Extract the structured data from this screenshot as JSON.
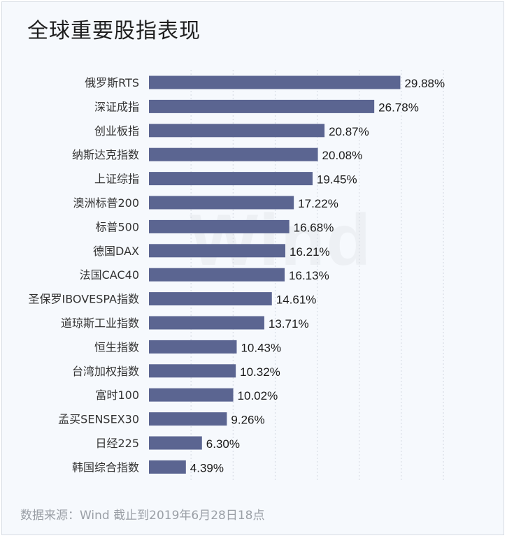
{
  "title": "全球重要股指表现",
  "source": "数据来源：Wind  截止到2019年6月28日18点",
  "watermark": "Wind",
  "colors": {
    "bar": "#5b6591",
    "grid": "#d3d8e0",
    "background": "#f6f9fd"
  },
  "chart_data": {
    "type": "bar",
    "orientation": "horizontal",
    "categories": [
      "俄罗斯RTS",
      "深证成指",
      "创业板指",
      "纳斯达克指数",
      "上证综指",
      "澳洲标普200",
      "标普500",
      "德国DAX",
      "法国CAC40",
      "圣保罗IBOVESPA指数",
      "道琼斯工业指数",
      "恒生指数",
      "台湾加权指数",
      "富时100",
      "孟买SENSEX30",
      "日经225",
      "韩国综合指数"
    ],
    "values": [
      29.88,
      26.78,
      20.87,
      20.08,
      19.45,
      17.22,
      16.68,
      16.21,
      16.13,
      14.61,
      13.71,
      10.43,
      10.32,
      10.02,
      9.26,
      6.3,
      4.39
    ],
    "labels": [
      "29.88%",
      "26.78%",
      "20.87%",
      "20.08%",
      "19.45%",
      "17.22%",
      "16.68%",
      "16.21%",
      "16.13%",
      "14.61%",
      "13.71%",
      "10.43%",
      "10.32%",
      "10.02%",
      "9.26%",
      "6.30%",
      "4.39%"
    ],
    "xlim": [
      0,
      35
    ],
    "grid": "vertical",
    "legend": "none"
  }
}
